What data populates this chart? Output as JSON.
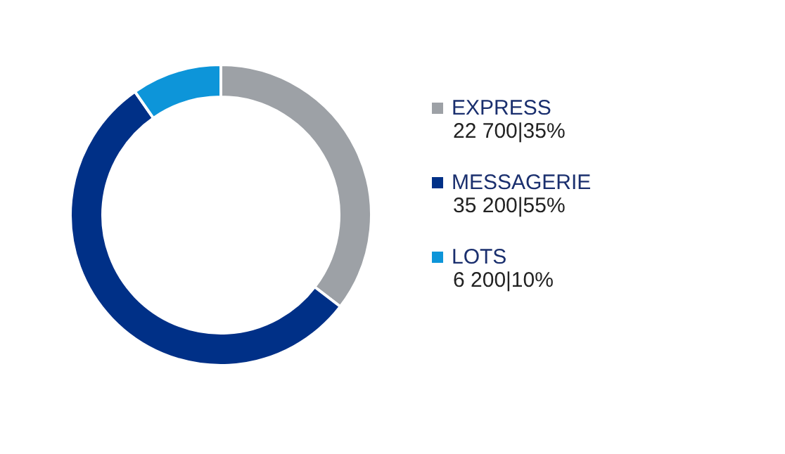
{
  "chart_data": {
    "type": "donut",
    "categories": [
      "EXPRESS",
      "MESSAGERIE",
      "LOTS"
    ],
    "values": [
      22700,
      35200,
      6200
    ],
    "value_labels": [
      "22 700|35%",
      "35 200|55%",
      "6 200|10%"
    ],
    "colors": [
      "#9da1a6",
      "#003087",
      "#0d95d9"
    ],
    "legend": "right"
  }
}
